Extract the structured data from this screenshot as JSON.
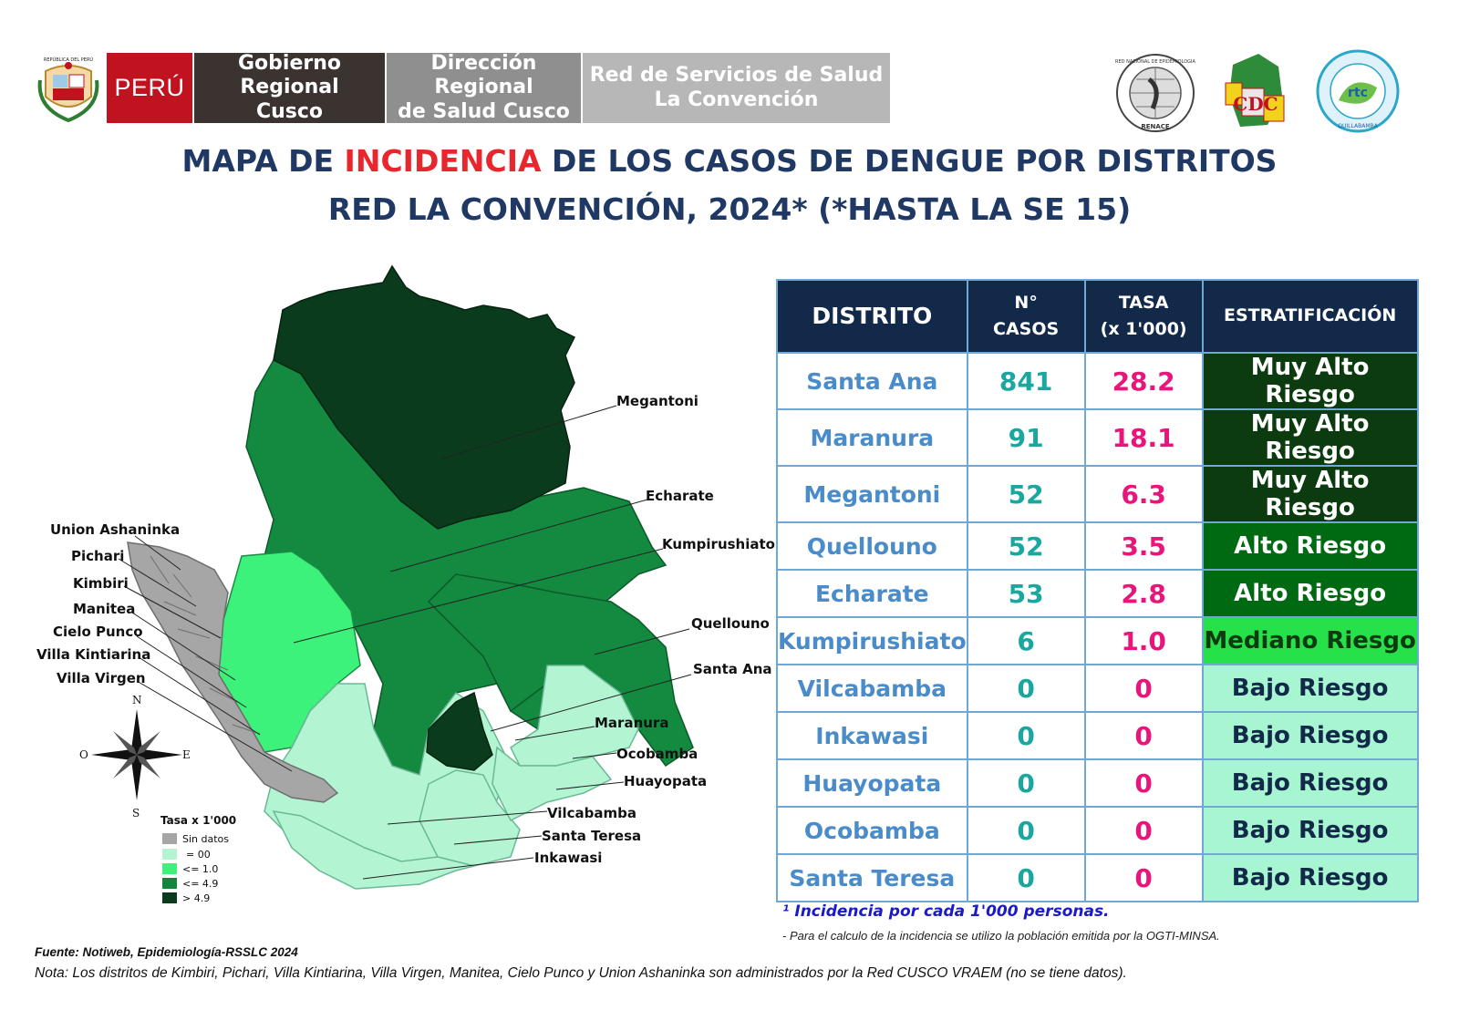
{
  "header": {
    "peru": "PERÚ",
    "gob_line1": "Gobierno Regional",
    "gob_line2": "Cusco",
    "dir_line1": "Dirección Regional",
    "dir_line2": "de Salud Cusco",
    "red_line1": "Red de Servicios de Salud",
    "red_line2": "La Convención",
    "escudo_text": "REPÚBLICA DEL PERÚ",
    "renace_text": "RED NACIONAL DE EPIDEMIOLOGIA",
    "renace_bottom": "RENACE",
    "cdc_text": "CDC",
    "rtc_text": "rtc",
    "rtc_bottom": "QUILLABAMBA"
  },
  "title": {
    "line1_a": "MAPA DE ",
    "line1_hl": "INCIDENCIA",
    "line1_b": " DE LOS CASOS DE DENGUE POR DISTRITOS",
    "line2": "RED LA CONVENCIÓN, 2024* (*HASTA LA SE  15)"
  },
  "table": {
    "headers": {
      "distrito": "DISTRITO",
      "casos_1": "N°",
      "casos_2": "CASOS",
      "tasa_1": "TASA",
      "tasa_2": "(x 1'000)",
      "estrat": "ESTRATIFICACIÓN"
    },
    "rows": [
      {
        "distrito": "Santa Ana",
        "casos": "841",
        "tasa": "28.2",
        "estrat": "Muy Alto Riesgo",
        "level": "muy"
      },
      {
        "distrito": "Maranura",
        "casos": "91",
        "tasa": "18.1",
        "estrat": "Muy Alto Riesgo",
        "level": "muy"
      },
      {
        "distrito": "Megantoni",
        "casos": "52",
        "tasa": "6.3",
        "estrat": "Muy Alto Riesgo",
        "level": "muy"
      },
      {
        "distrito": "Quellouno",
        "casos": "52",
        "tasa": "3.5",
        "estrat": "Alto Riesgo",
        "level": "alto"
      },
      {
        "distrito": "Echarate",
        "casos": "53",
        "tasa": "2.8",
        "estrat": "Alto Riesgo",
        "level": "alto"
      },
      {
        "distrito": "Kumpirushiato",
        "casos": "6",
        "tasa": "1.0",
        "estrat": "Mediano Riesgo",
        "level": "med"
      },
      {
        "distrito": "Vilcabamba",
        "casos": "0",
        "tasa": "0",
        "estrat": "Bajo Riesgo",
        "level": "bajo"
      },
      {
        "distrito": "Inkawasi",
        "casos": "0",
        "tasa": "0",
        "estrat": "Bajo Riesgo",
        "level": "bajo"
      },
      {
        "distrito": "Huayopata",
        "casos": "0",
        "tasa": "0",
        "estrat": "Bajo Riesgo",
        "level": "bajo"
      },
      {
        "distrito": "Ocobamba",
        "casos": "0",
        "tasa": "0",
        "estrat": "Bajo Riesgo",
        "level": "bajo"
      },
      {
        "distrito": "Santa Teresa",
        "casos": "0",
        "tasa": "0",
        "estrat": "Bajo Riesgo",
        "level": "bajo"
      }
    ]
  },
  "map": {
    "district_labels": {
      "megantoni": "Megantoni",
      "echarate": "Echarate",
      "kumpirushiato": "Kumpirushiato",
      "quellouno": "Quellouno",
      "santa_ana": "Santa Ana",
      "maranura": "Maranura",
      "ocobamba": "Ocobamba",
      "huayopata": "Huayopata",
      "vilcabamba": "Vilcabamba",
      "santa_teresa": "Santa Teresa",
      "inkawasi": "Inkawasi",
      "union_ashaninka": "Union Ashaninka",
      "pichari": "Pichari",
      "kimbiri": "Kimbiri",
      "manitea": "Manitea",
      "cielo_punco": "Cielo Punco",
      "villa_kintiarina": "Villa Kintiarina",
      "villa_virgen": "Villa Virgen"
    },
    "compass": {
      "n": "N",
      "s": "S",
      "e": "E",
      "o": "O"
    },
    "legend": {
      "title": "Tasa x 1'000",
      "items": [
        {
          "label": "Sin datos",
          "color": "#a6a6a6"
        },
        {
          "label": "= 00",
          "color": "#b3f5d3"
        },
        {
          "label": "<= 1.0",
          "color": "#3df27a"
        },
        {
          "label": "<= 4.9",
          "color": "#13843c"
        },
        {
          "label": ">  4.9",
          "color": "#0b3b1d"
        }
      ]
    }
  },
  "notes": {
    "incidencia": "¹ Incidencia  por cada 1'000 personas.",
    "calculo": "- Para el calculo de la incidencia se utilizo la población emitida por la OGTI-MINSA.",
    "fuente": "Fuente: Notiweb, Epidemiología-RSSLC 2024",
    "nota": "Nota: Los distritos de Kimbiri, Pichari, Villa Kintiarina, Villa Virgen, Manitea, Cielo Punco y Union Ashaninka son administrados por la Red CUSCO VRAEM (no se tiene datos)."
  }
}
